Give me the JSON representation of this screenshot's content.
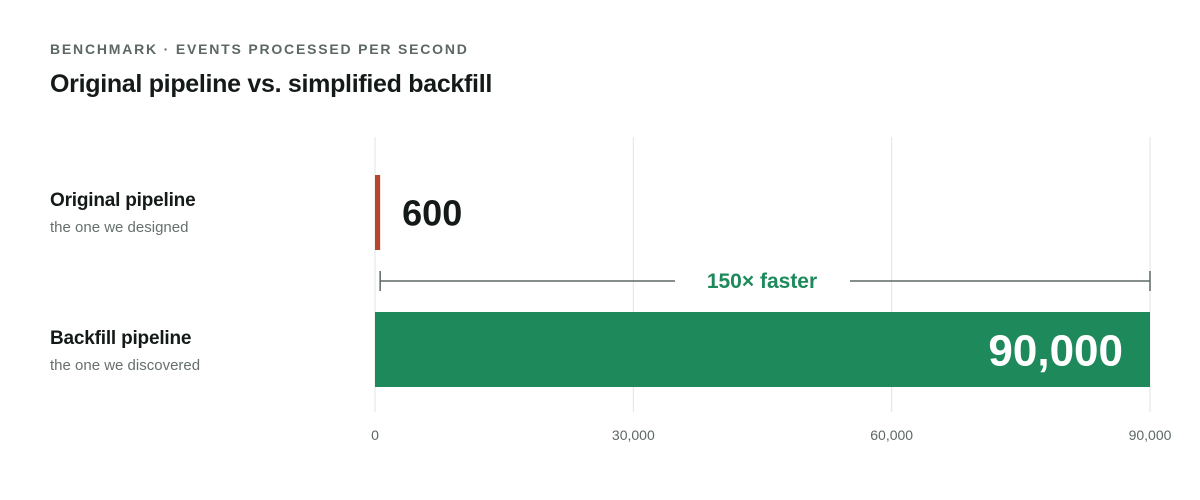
{
  "header": {
    "eyebrow": "BENCHMARK · EVENTS PROCESSED PER SECOND",
    "title": "Original pipeline vs. simplified backfill"
  },
  "rows": [
    {
      "name": "Original pipeline",
      "sub": "the one we designed"
    },
    {
      "name": "Backfill pipeline",
      "sub": "the one we discovered"
    }
  ],
  "colors": {
    "original_bar": "#b5472d",
    "backfill_bar": "#1e8a5b",
    "annotation": "#1e8a5b",
    "grid": "#e3e3e3",
    "bracket": "#5d6863"
  },
  "chart_data": {
    "type": "bar",
    "orientation": "horizontal",
    "categories": [
      "Original pipeline",
      "Backfill pipeline"
    ],
    "values": [
      600,
      90000
    ],
    "value_labels": [
      "600",
      "90,000"
    ],
    "xlim": [
      0,
      90000
    ],
    "x_ticks": [
      0,
      30000,
      60000,
      90000
    ],
    "x_tick_labels": [
      "0",
      "30,000",
      "60,000",
      "90,000"
    ],
    "grid": true,
    "annotation": {
      "text": "150× faster",
      "from": 600,
      "to": 90000
    }
  }
}
